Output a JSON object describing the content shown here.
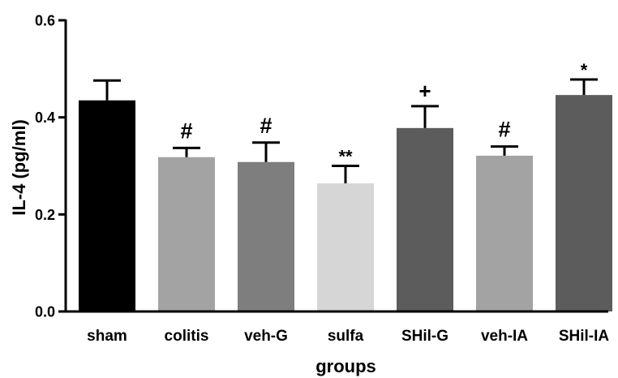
{
  "chart_data": {
    "type": "bar",
    "title": "",
    "xlabel": "groups",
    "ylabel": "IL-4 (pg/ml)",
    "ylim": [
      0,
      0.6
    ],
    "yticks": [
      0.0,
      0.2,
      0.4,
      0.6
    ],
    "ytick_labels": [
      "0.0",
      "0.2",
      "0.4",
      "0.6"
    ],
    "categories": [
      "sham",
      "colitis",
      "veh-G",
      "sulfa",
      "SHil-G",
      "veh-IA",
      "SHil-IA"
    ],
    "values": [
      0.435,
      0.318,
      0.308,
      0.264,
      0.378,
      0.321,
      0.446
    ],
    "errors": [
      0.041,
      0.019,
      0.04,
      0.036,
      0.045,
      0.019,
      0.032
    ],
    "annotations": [
      "",
      "#",
      "#",
      "**",
      "+",
      "#",
      "*"
    ],
    "colors": [
      "#000000",
      "#a3a3a3",
      "#7e7e7e",
      "#d6d6d6",
      "#5c5c5c",
      "#a3a3a3",
      "#5c5c5c"
    ],
    "grid": false,
    "legend": "none"
  }
}
